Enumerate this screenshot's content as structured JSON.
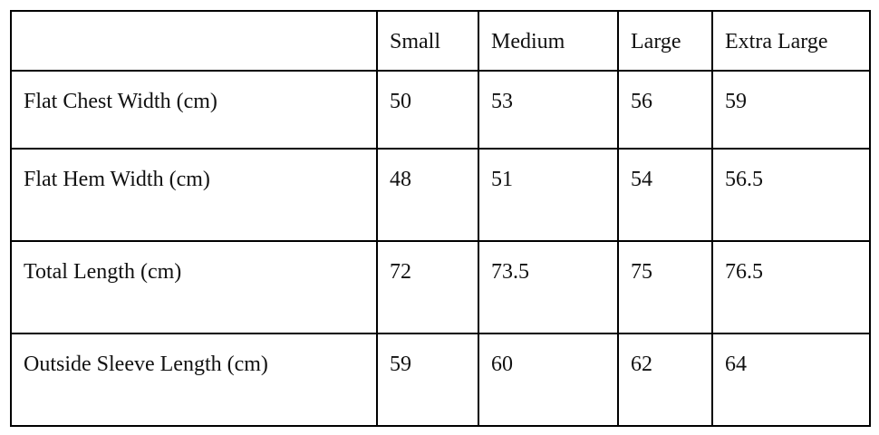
{
  "table": {
    "header": [
      "Small",
      "Medium",
      "Large",
      "Extra Large"
    ],
    "rows": [
      {
        "label": "Flat Chest Width (cm)",
        "values": [
          50,
          53,
          56,
          59
        ]
      },
      {
        "label": "Flat Hem Width (cm)",
        "values": [
          48,
          51,
          54,
          56.5
        ]
      },
      {
        "label": "Total Length (cm)",
        "values": [
          72,
          73.5,
          75,
          76.5
        ]
      },
      {
        "label": "Outside Sleeve Length (cm)",
        "values": [
          59,
          60,
          62,
          64
        ]
      }
    ]
  }
}
